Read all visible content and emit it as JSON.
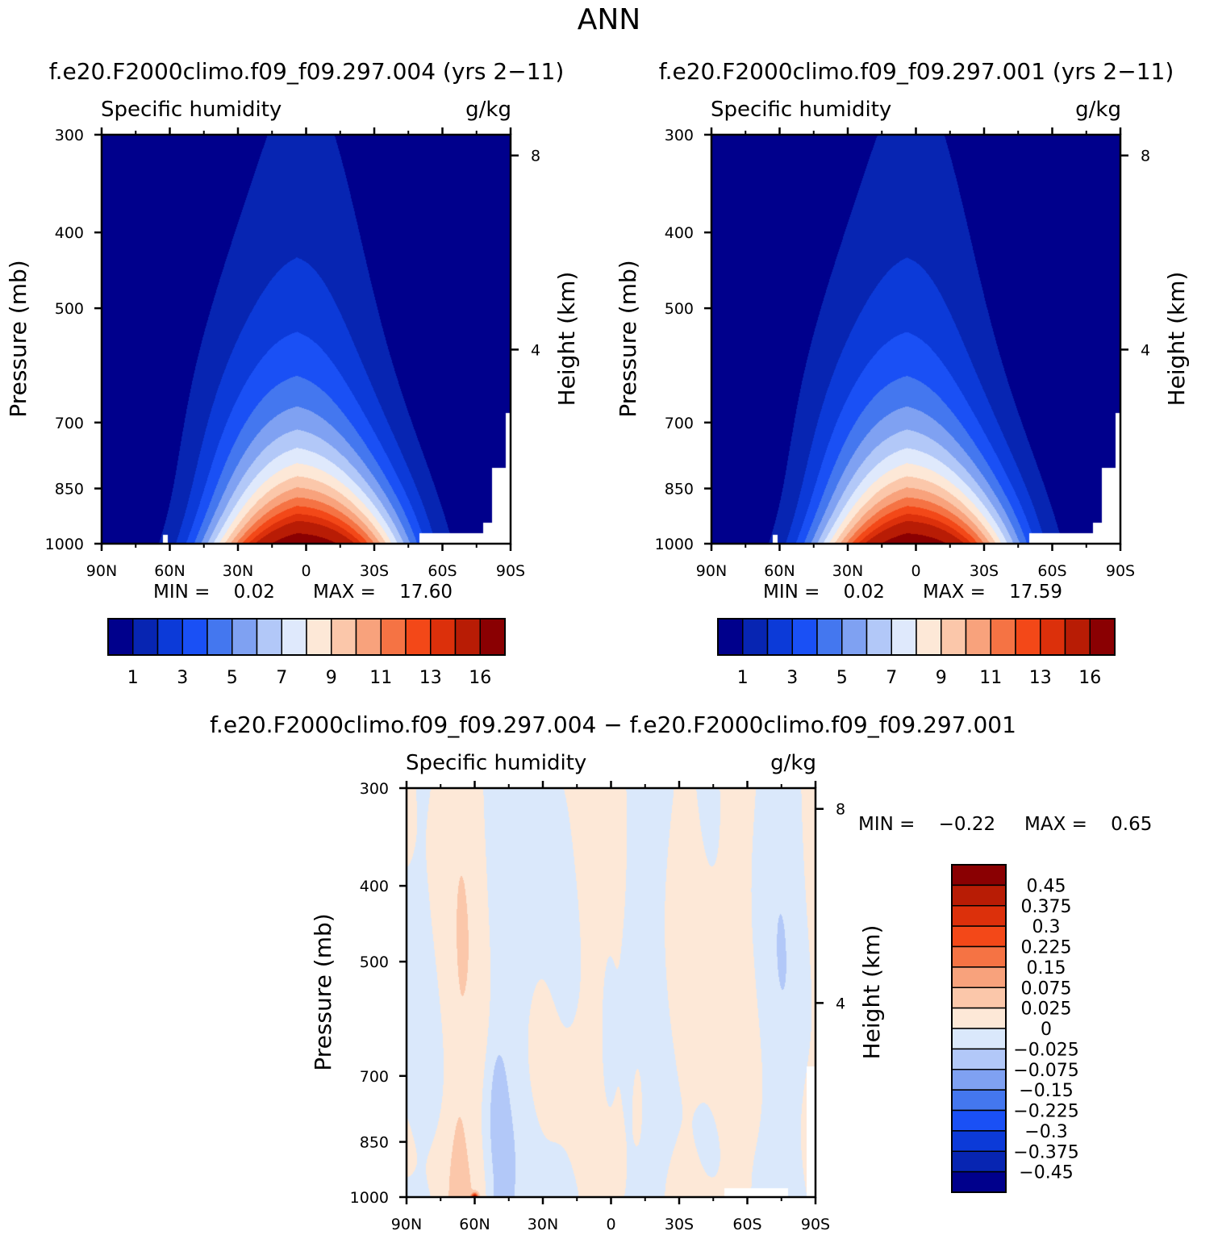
{
  "page": {
    "title": "ANN",
    "difference_title": "f.e20.F2000climo.f09_f09.297.004 − f.e20.F2000climo.f09_f09.297.001"
  },
  "colors": {
    "main_levels": [
      "#00008c",
      "#0725b2",
      "#0c3ad8",
      "#1a50f5",
      "#4477ef",
      "#7fa1f2",
      "#b2c8f8",
      "#dfe9fc",
      "#fde8d7",
      "#fbc7aa",
      "#f8a27c",
      "#f57344",
      "#f34818",
      "#dc300b",
      "#b81c05",
      "#8a0002"
    ],
    "diff_levels": [
      "#00008c",
      "#0725b2",
      "#0c3ad8",
      "#1a50f5",
      "#4477ef",
      "#7fa1f2",
      "#b2c8f8",
      "#dae8fb",
      "#fde8d7",
      "#fbc7aa",
      "#f8a27c",
      "#f57344",
      "#f34818",
      "#dc300b",
      "#b81c05",
      "#8a0002"
    ]
  },
  "chart_data": [
    {
      "type": "heatmap",
      "title": "f.e20.F2000climo.f09_f09.297.004 (yrs 2−11)",
      "variable": "Specific humidity",
      "units": "g/kg",
      "ylabel": "Pressure (mb)",
      "y2label": "Height (km)",
      "x_ticks": [
        "90N",
        "60N",
        "30N",
        "0",
        "30S",
        "60S",
        "90S"
      ],
      "y_ticks": [
        "300",
        "400",
        "500",
        "700",
        "850",
        "1000"
      ],
      "y2_ticks": [
        "8",
        "4"
      ],
      "ylim": [
        1000,
        300
      ],
      "xlim": [
        90,
        -90
      ],
      "levels": [
        1,
        2,
        3,
        4,
        5,
        6,
        7,
        8,
        9,
        10,
        11,
        12,
        13,
        14,
        16
      ],
      "colorbar_labels": [
        "1",
        "3",
        "5",
        "7",
        "9",
        "11",
        "13",
        "16"
      ],
      "min_text": "MIN =    0.02",
      "max_text": "MAX =    17.60",
      "min": 0.02,
      "max": 17.6
    },
    {
      "type": "heatmap",
      "title": "f.e20.F2000climo.f09_f09.297.001 (yrs 2−11)",
      "variable": "Specific humidity",
      "units": "g/kg",
      "ylabel": "Pressure (mb)",
      "y2label": "Height (km)",
      "x_ticks": [
        "90N",
        "60N",
        "30N",
        "0",
        "30S",
        "60S",
        "90S"
      ],
      "y_ticks": [
        "300",
        "400",
        "500",
        "700",
        "850",
        "1000"
      ],
      "y2_ticks": [
        "8",
        "4"
      ],
      "ylim": [
        1000,
        300
      ],
      "xlim": [
        90,
        -90
      ],
      "levels": [
        1,
        2,
        3,
        4,
        5,
        6,
        7,
        8,
        9,
        10,
        11,
        12,
        13,
        14,
        16
      ],
      "colorbar_labels": [
        "1",
        "3",
        "5",
        "7",
        "9",
        "11",
        "13",
        "16"
      ],
      "min_text": "MIN =    0.02",
      "max_text": "MAX =    17.59",
      "min": 0.02,
      "max": 17.59
    },
    {
      "type": "heatmap",
      "variable": "Specific humidity",
      "units": "g/kg",
      "ylabel": "Pressure (mb)",
      "y2label": "Height (km)",
      "x_ticks": [
        "90N",
        "60N",
        "30N",
        "0",
        "30S",
        "60S",
        "90S"
      ],
      "y_ticks": [
        "300",
        "400",
        "500",
        "700",
        "850",
        "1000"
      ],
      "y2_ticks": [
        "8",
        "4"
      ],
      "ylim": [
        1000,
        300
      ],
      "xlim": [
        90,
        -90
      ],
      "levels": [
        -0.45,
        -0.375,
        -0.3,
        -0.225,
        -0.15,
        -0.075,
        -0.025,
        0,
        0.025,
        0.075,
        0.15,
        0.225,
        0.3,
        0.375,
        0.45
      ],
      "colorbar_labels": [
        "0.45",
        "0.375",
        "0.3",
        "0.225",
        "0.15",
        "0.075",
        "0.025",
        "0",
        "−0.025",
        "−0.075",
        "−0.15",
        "−0.225",
        "−0.3",
        "−0.375",
        "−0.45"
      ],
      "min_text": "MIN =    −0.22",
      "max_text": "MAX =    0.65",
      "min": -0.22,
      "max": 0.65
    }
  ]
}
